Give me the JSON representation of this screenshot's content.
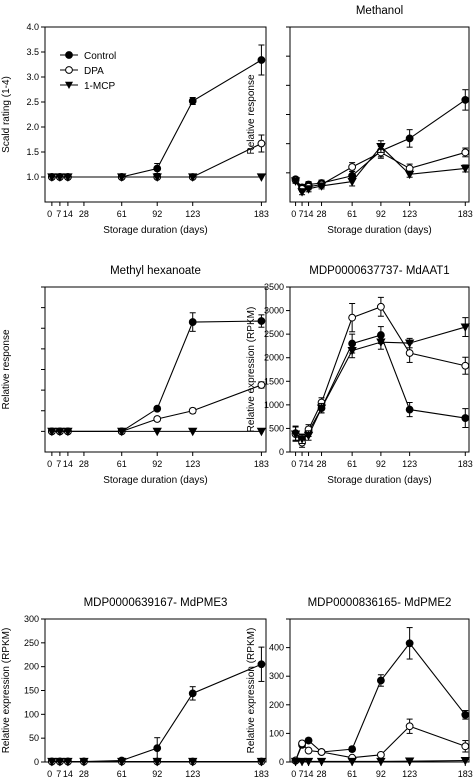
{
  "x_ticks": [
    0,
    7,
    14,
    28,
    61,
    92,
    123,
    183
  ],
  "x_tick_labels": [
    "0",
    "7",
    "14",
    "28",
    "61",
    "92",
    "123",
    "183"
  ],
  "legend": [
    {
      "name": "Control",
      "marker": "filled-circle"
    },
    {
      "name": "DPA",
      "marker": "open-circle"
    },
    {
      "name": "1-MCP",
      "marker": "filled-triangle-down"
    }
  ],
  "chart_data": [
    {
      "type": "line",
      "title": "",
      "xlabel": "Storage duration (days)",
      "ylabel": "Scald rating (1-4)",
      "ylim": [
        0.5,
        4.0
      ],
      "yticks": [
        1.0,
        1.5,
        2.0,
        2.5,
        3.0,
        3.5,
        4.0
      ],
      "ytick_labels": [
        "1.0",
        "1.5",
        "2.0",
        "2.5",
        "3.0",
        "3.5",
        "4.0"
      ],
      "legend_position": "top-left",
      "series": [
        {
          "name": "Control",
          "x": [
            0,
            7,
            14,
            61,
            92,
            123,
            183
          ],
          "values": [
            1.0,
            1.0,
            1.0,
            1.0,
            1.17,
            2.52,
            3.34
          ],
          "err": [
            0,
            0,
            0,
            0,
            0.1,
            0.07,
            0.3
          ]
        },
        {
          "name": "DPA",
          "x": [
            0,
            7,
            14,
            61,
            92,
            123,
            183
          ],
          "values": [
            1.0,
            1.0,
            1.0,
            1.0,
            1.0,
            1.0,
            1.67
          ],
          "err": [
            0,
            0,
            0,
            0,
            0,
            0,
            0.17
          ]
        },
        {
          "name": "1-MCP",
          "x": [
            0,
            7,
            14,
            61,
            92,
            123,
            183
          ],
          "values": [
            1.0,
            1.0,
            1.0,
            1.0,
            1.0,
            1.0,
            1.0
          ],
          "err": [
            0,
            0,
            0,
            0,
            0,
            0,
            0
          ]
        }
      ]
    },
    {
      "type": "line",
      "title": "Methanol",
      "xlabel": "Storage duration (days)",
      "ylabel": "Relative response",
      "ylim": [
        0,
        6
      ],
      "yticks": [
        1,
        2,
        3,
        4,
        5,
        6
      ],
      "ytick_labels": [
        "",
        "",
        "",
        "",
        "",
        ""
      ],
      "series": [
        {
          "name": "Control",
          "x": [
            0,
            7,
            14,
            28,
            61,
            92,
            123,
            183
          ],
          "values": [
            0.78,
            0.5,
            0.6,
            0.65,
            0.9,
            1.75,
            2.18,
            3.5
          ],
          "err": [
            0.08,
            0.1,
            0.1,
            0.1,
            0.15,
            0.2,
            0.3,
            0.35
          ]
        },
        {
          "name": "DPA",
          "x": [
            0,
            7,
            14,
            28,
            61,
            92,
            123,
            183
          ],
          "values": [
            0.75,
            0.45,
            0.52,
            0.6,
            1.2,
            1.7,
            1.15,
            1.7
          ],
          "err": [
            0.08,
            0.1,
            0.1,
            0.1,
            0.15,
            0.2,
            0.15,
            0.15
          ]
        },
        {
          "name": "1-MCP",
          "x": [
            0,
            7,
            14,
            28,
            61,
            92,
            123,
            183
          ],
          "values": [
            0.72,
            0.35,
            0.45,
            0.55,
            0.7,
            1.9,
            0.95,
            1.15
          ],
          "err": [
            0.08,
            0.1,
            0.1,
            0.1,
            0.15,
            0.2,
            0.1,
            0.12
          ]
        }
      ]
    },
    {
      "type": "line",
      "title": "Methyl hexanoate",
      "xlabel": "Storage duration (days)",
      "ylabel": "Relative response",
      "ylim": [
        0,
        8
      ],
      "yticks": [
        1,
        2,
        3,
        4,
        5,
        6,
        7,
        8
      ],
      "ytick_labels": [
        "",
        "",
        "",
        "",
        "",
        "",
        "",
        ""
      ],
      "series": [
        {
          "name": "Control",
          "x": [
            0,
            7,
            14,
            61,
            92,
            123,
            183
          ],
          "values": [
            1.0,
            1.0,
            1.0,
            1.0,
            2.1,
            6.3,
            6.35
          ],
          "err": [
            0,
            0,
            0,
            0,
            0.1,
            0.45,
            0.3
          ]
        },
        {
          "name": "DPA",
          "x": [
            0,
            7,
            14,
            61,
            92,
            123,
            183
          ],
          "values": [
            1.0,
            1.0,
            1.0,
            1.0,
            1.6,
            2.0,
            3.25
          ],
          "err": [
            0,
            0,
            0,
            0,
            0.1,
            0.12,
            0.15
          ]
        },
        {
          "name": "1-MCP",
          "x": [
            0,
            7,
            14,
            61,
            92,
            123,
            183
          ],
          "values": [
            1.0,
            1.0,
            1.0,
            1.0,
            1.0,
            1.0,
            1.0
          ],
          "err": [
            0,
            0,
            0,
            0,
            0,
            0,
            0
          ]
        }
      ]
    },
    {
      "type": "line",
      "title": "MDP0000637737- MdAAT1",
      "xlabel": "Storage duration (days)",
      "ylabel": "Relative expression (RPKM)",
      "ylim": [
        0,
        3500
      ],
      "yticks": [
        0,
        500,
        1000,
        1500,
        2000,
        2500,
        3000,
        3500
      ],
      "ytick_labels": [
        "0",
        "500",
        "1000",
        "1500",
        "2000",
        "2500",
        "3000",
        "3500"
      ],
      "series": [
        {
          "name": "Control",
          "x": [
            0,
            7,
            14,
            28,
            61,
            92,
            123,
            183
          ],
          "values": [
            400,
            270,
            430,
            930,
            2300,
            2480,
            900,
            720
          ],
          "err": [
            150,
            100,
            100,
            100,
            200,
            180,
            150,
            200
          ]
        },
        {
          "name": "DPA",
          "x": [
            0,
            7,
            14,
            28,
            61,
            92,
            123,
            183
          ],
          "values": [
            380,
            200,
            480,
            1050,
            2850,
            3080,
            2100,
            1830
          ],
          "err": [
            150,
            100,
            100,
            100,
            300,
            200,
            200,
            180
          ]
        },
        {
          "name": "1-MCP",
          "x": [
            0,
            7,
            14,
            28,
            61,
            92,
            123,
            183
          ],
          "values": [
            380,
            280,
            350,
            930,
            2150,
            2330,
            2310,
            2650
          ],
          "err": [
            150,
            100,
            100,
            100,
            150,
            150,
            100,
            200
          ]
        }
      ]
    },
    {
      "type": "line",
      "title": "MDP0000639167- MdPME3",
      "xlabel": "Storage duration (days)",
      "ylabel": "Relative expression (RPKM)",
      "ylim": [
        0,
        300
      ],
      "yticks": [
        0,
        50,
        100,
        150,
        200,
        250,
        300
      ],
      "ytick_labels": [
        "0",
        "50",
        "100",
        "150",
        "200",
        "250",
        "300"
      ],
      "series": [
        {
          "name": "Control",
          "x": [
            0,
            7,
            14,
            28,
            61,
            92,
            123,
            183
          ],
          "values": [
            1,
            1,
            1,
            1,
            3,
            29,
            144,
            205
          ],
          "err": [
            0,
            0,
            0,
            0,
            2,
            22,
            14,
            36
          ]
        },
        {
          "name": "DPA",
          "x": [
            0,
            7,
            14,
            28,
            61,
            92,
            123,
            183
          ],
          "values": [
            1,
            1,
            1,
            1,
            1,
            1,
            1,
            1
          ],
          "err": [
            0,
            0,
            0,
            0,
            0,
            0,
            0,
            0
          ]
        },
        {
          "name": "1-MCP",
          "x": [
            0,
            7,
            14,
            28,
            61,
            92,
            123,
            183
          ],
          "values": [
            1,
            1,
            1,
            1,
            1,
            1,
            1,
            1
          ],
          "err": [
            0,
            0,
            0,
            0,
            0,
            0,
            0,
            0
          ]
        }
      ]
    },
    {
      "type": "line",
      "title": "MDP0000836165- MdPME2",
      "xlabel": "Storage duration (days)",
      "ylabel": "Relative expression (RPKM)",
      "ylim": [
        0,
        500
      ],
      "yticks": [
        0,
        100,
        200,
        300,
        400,
        500
      ],
      "ytick_labels": [
        "0",
        "100",
        "200",
        "300",
        "400",
        ""
      ],
      "series": [
        {
          "name": "Control",
          "x": [
            0,
            7,
            14,
            28,
            61,
            92,
            123,
            183
          ],
          "values": [
            5,
            60,
            75,
            35,
            45,
            285,
            415,
            165
          ],
          "err": [
            3,
            8,
            8,
            5,
            8,
            20,
            55,
            15
          ]
        },
        {
          "name": "DPA",
          "x": [
            0,
            7,
            14,
            28,
            61,
            92,
            123,
            183
          ],
          "values": [
            5,
            65,
            40,
            35,
            15,
            25,
            125,
            55
          ],
          "err": [
            3,
            8,
            6,
            5,
            5,
            5,
            25,
            20
          ]
        },
        {
          "name": "1-MCP",
          "x": [
            0,
            7,
            14,
            28,
            61,
            92,
            123,
            183
          ],
          "values": [
            2,
            2,
            2,
            2,
            2,
            2,
            3,
            5
          ],
          "err": [
            0,
            0,
            0,
            0,
            0,
            0,
            0,
            0
          ]
        }
      ]
    }
  ]
}
